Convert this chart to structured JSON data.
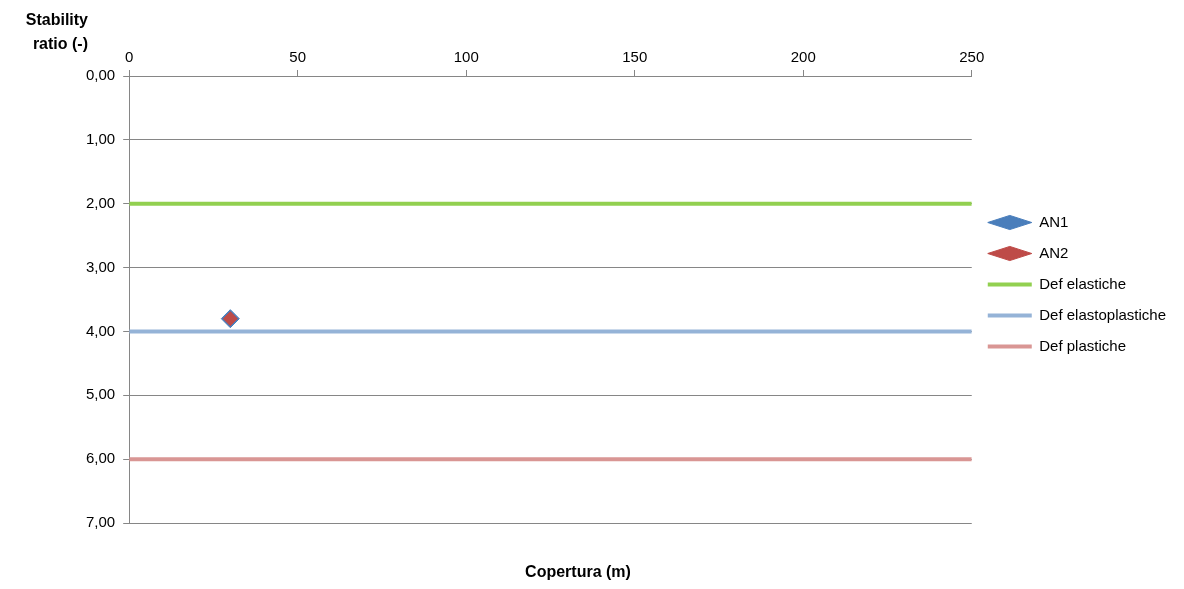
{
  "chart_data": {
    "type": "scatter",
    "xlabel": "Copertura (m)",
    "ylabel": "Stability ratio (-)",
    "xlim": [
      0,
      250
    ],
    "xticks": [
      0,
      50,
      100,
      150,
      200,
      250
    ],
    "ylim": [
      7,
      0
    ],
    "yticks": [
      {
        "value": 0,
        "label": "0,00"
      },
      {
        "value": 1,
        "label": "1,00"
      },
      {
        "value": 2,
        "label": "2,00"
      },
      {
        "value": 3,
        "label": "3,00"
      },
      {
        "value": 4,
        "label": "4,00"
      },
      {
        "value": 5,
        "label": "5,00"
      },
      {
        "value": 6,
        "label": "6,00"
      },
      {
        "value": 7,
        "label": "7,00"
      }
    ],
    "grid": "y",
    "legend": "right",
    "series": [
      {
        "name": "AN1",
        "marker": "diamond",
        "color": "#4a7ebb",
        "x": [
          30
        ],
        "values": [
          3.8
        ]
      },
      {
        "name": "AN2",
        "marker": "diamond",
        "color": "#be4b48",
        "x": [
          30
        ],
        "values": [
          3.8
        ]
      },
      {
        "name": "Def elastiche",
        "type": "line",
        "marker": "none",
        "color": "#92d050",
        "x": [
          0,
          250
        ],
        "values": [
          2,
          2
        ]
      },
      {
        "name": "Def elastoplastiche",
        "type": "line",
        "marker": "none",
        "color": "#95b3d7",
        "x": [
          0,
          250
        ],
        "values": [
          4,
          4
        ]
      },
      {
        "name": "Def plastiche",
        "type": "line",
        "marker": "none",
        "color": "#d99694",
        "x": [
          0,
          250
        ],
        "values": [
          6,
          6
        ]
      }
    ]
  }
}
